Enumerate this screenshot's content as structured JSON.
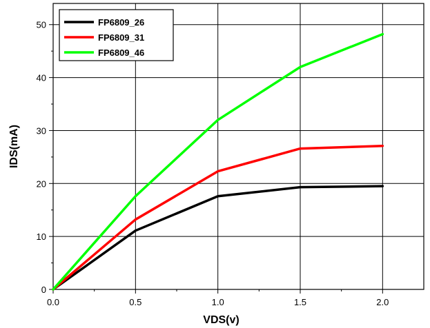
{
  "chart_data": {
    "type": "line",
    "title": "",
    "xlabel": "VDS(v)",
    "ylabel": "IDS(mA)",
    "xlim": [
      0.0,
      2.25
    ],
    "ylim": [
      0,
      54
    ],
    "xticks": [
      0.0,
      0.5,
      1.0,
      1.5,
      2.0
    ],
    "xtick_labels": [
      "0.0",
      "0.5",
      "1.0",
      "1.5",
      "2.0"
    ],
    "yticks": [
      0,
      10,
      20,
      30,
      40,
      50
    ],
    "ytick_labels": [
      "0",
      "10",
      "20",
      "30",
      "40",
      "50"
    ],
    "grid": true,
    "legend_position": "top-left",
    "x": [
      0.0,
      0.5,
      1.0,
      1.5,
      2.0
    ],
    "series": [
      {
        "name": "FP6809_26",
        "color": "#000000",
        "values": [
          0,
          11.1,
          17.6,
          19.3,
          19.5
        ]
      },
      {
        "name": "FP6809_31",
        "color": "#ff0000",
        "values": [
          0,
          13.2,
          22.3,
          26.6,
          27.1
        ]
      },
      {
        "name": "FP6809_46",
        "color": "#00ff00",
        "values": [
          0,
          17.6,
          32.0,
          42.0,
          48.2
        ]
      }
    ]
  }
}
